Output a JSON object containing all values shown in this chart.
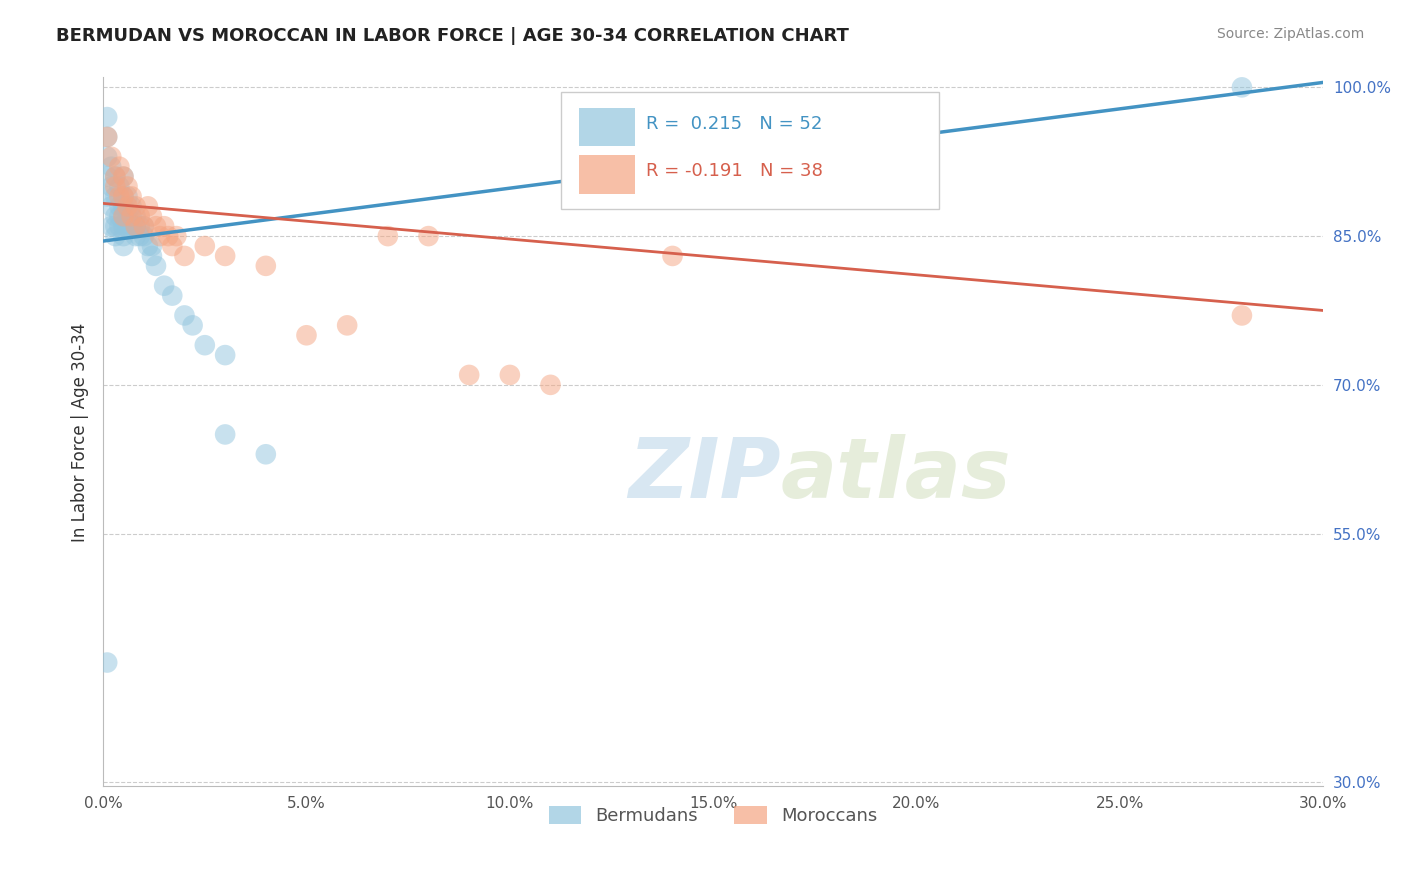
{
  "title": "BERMUDAN VS MOROCCAN IN LABOR FORCE | AGE 30-34 CORRELATION CHART",
  "source": "Source: ZipAtlas.com",
  "ylabel": "In Labor Force | Age 30-34",
  "xlim": [
    0.0,
    0.3
  ],
  "ylim": [
    0.295,
    1.01
  ],
  "xtick_labels": [
    "0.0%",
    "5.0%",
    "10.0%",
    "15.0%",
    "20.0%",
    "25.0%",
    "30.0%"
  ],
  "xtick_vals": [
    0.0,
    0.05,
    0.1,
    0.15,
    0.2,
    0.25,
    0.3
  ],
  "ytick_labels": [
    "100.0%",
    "85.0%",
    "70.0%",
    "55.0%",
    "30.0%"
  ],
  "ytick_vals": [
    1.0,
    0.85,
    0.7,
    0.55,
    0.3
  ],
  "r_blue": 0.215,
  "n_blue": 52,
  "r_pink": -0.191,
  "n_pink": 38,
  "blue_color": "#92c5de",
  "pink_color": "#f4a582",
  "blue_line_color": "#4393c3",
  "pink_line_color": "#d6604d",
  "watermark_text": "ZIP",
  "watermark_text2": "atlas",
  "blue_line_x": [
    0.0,
    0.3
  ],
  "blue_line_y": [
    0.845,
    1.005
  ],
  "pink_line_x": [
    0.0,
    0.3
  ],
  "pink_line_y": [
    0.883,
    0.775
  ],
  "blue_x": [
    0.001,
    0.001,
    0.001,
    0.001,
    0.001,
    0.002,
    0.002,
    0.002,
    0.002,
    0.003,
    0.003,
    0.003,
    0.003,
    0.003,
    0.004,
    0.004,
    0.004,
    0.004,
    0.005,
    0.005,
    0.005,
    0.005,
    0.005,
    0.005,
    0.005,
    0.006,
    0.006,
    0.006,
    0.007,
    0.007,
    0.007,
    0.008,
    0.008,
    0.008,
    0.009,
    0.009,
    0.01,
    0.01,
    0.011,
    0.012,
    0.012,
    0.013,
    0.015,
    0.017,
    0.02,
    0.022,
    0.025,
    0.03,
    0.03,
    0.04,
    0.28,
    0.001
  ],
  "blue_y": [
    0.97,
    0.95,
    0.93,
    0.91,
    0.89,
    0.92,
    0.9,
    0.88,
    0.86,
    0.91,
    0.89,
    0.87,
    0.86,
    0.85,
    0.9,
    0.88,
    0.87,
    0.86,
    0.91,
    0.89,
    0.88,
    0.87,
    0.86,
    0.85,
    0.84,
    0.89,
    0.87,
    0.86,
    0.88,
    0.87,
    0.86,
    0.87,
    0.86,
    0.85,
    0.86,
    0.85,
    0.86,
    0.85,
    0.84,
    0.83,
    0.84,
    0.82,
    0.8,
    0.79,
    0.77,
    0.76,
    0.74,
    0.73,
    0.65,
    0.63,
    1.0,
    0.42
  ],
  "pink_x": [
    0.001,
    0.002,
    0.003,
    0.003,
    0.004,
    0.004,
    0.005,
    0.005,
    0.005,
    0.006,
    0.006,
    0.007,
    0.007,
    0.008,
    0.008,
    0.009,
    0.01,
    0.011,
    0.012,
    0.013,
    0.014,
    0.015,
    0.016,
    0.017,
    0.018,
    0.02,
    0.025,
    0.03,
    0.04,
    0.05,
    0.06,
    0.07,
    0.08,
    0.1,
    0.11,
    0.28,
    0.14,
    0.09
  ],
  "pink_y": [
    0.95,
    0.93,
    0.91,
    0.9,
    0.92,
    0.89,
    0.91,
    0.89,
    0.87,
    0.9,
    0.88,
    0.89,
    0.87,
    0.88,
    0.86,
    0.87,
    0.86,
    0.88,
    0.87,
    0.86,
    0.85,
    0.86,
    0.85,
    0.84,
    0.85,
    0.83,
    0.84,
    0.83,
    0.82,
    0.75,
    0.76,
    0.85,
    0.85,
    0.71,
    0.7,
    0.77,
    0.83,
    0.71
  ]
}
